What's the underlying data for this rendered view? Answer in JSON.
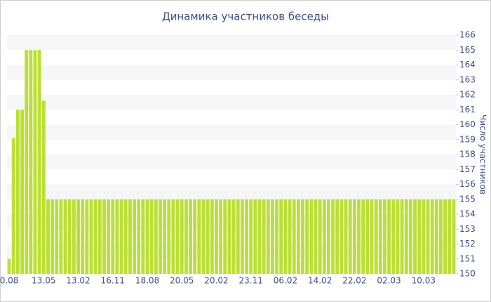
{
  "chart_data": {
    "type": "bar",
    "title": "Динамика участников беседы",
    "y_axis_label": "Число участников",
    "color": "#bcdf37",
    "categories": [
      "0.08",
      null,
      null,
      null,
      null,
      null,
      null,
      null,
      "13.05",
      null,
      null,
      null,
      null,
      null,
      null,
      null,
      "13.02",
      null,
      null,
      null,
      null,
      null,
      null,
      null,
      "16.11",
      null,
      null,
      null,
      null,
      null,
      null,
      null,
      "18.08",
      null,
      null,
      null,
      null,
      null,
      null,
      null,
      "20.05",
      null,
      null,
      null,
      null,
      null,
      null,
      null,
      "20.02",
      null,
      null,
      null,
      null,
      null,
      null,
      null,
      "23.11",
      null,
      null,
      null,
      null,
      null,
      null,
      null,
      "06.02",
      null,
      null,
      null,
      null,
      null,
      null,
      null,
      "14.02",
      null,
      null,
      null,
      null,
      null,
      null,
      null,
      "22.02",
      null,
      null,
      null,
      null,
      null,
      null,
      null,
      "02.03",
      null,
      null,
      null,
      null,
      null,
      null,
      null,
      "10.03",
      null,
      null,
      null,
      null,
      null,
      null,
      null
    ],
    "values": [
      151,
      159.1,
      161,
      161,
      165,
      165,
      165,
      165,
      161.6,
      155,
      155,
      155,
      155,
      155,
      155,
      155,
      155,
      155,
      155,
      155,
      155,
      155,
      155,
      155,
      155,
      155,
      155,
      155,
      155,
      155,
      155,
      155,
      155,
      155,
      155,
      155,
      155,
      155,
      155,
      155,
      155,
      155,
      155,
      155,
      155,
      155,
      155,
      155,
      155,
      155,
      155,
      155,
      155,
      155,
      155,
      155,
      155,
      155,
      155,
      155,
      155,
      155,
      155,
      155,
      155,
      155,
      155,
      155,
      155,
      155,
      155,
      155,
      155,
      155,
      155,
      155,
      155,
      155,
      155,
      155,
      155,
      155,
      155,
      155,
      155,
      155,
      155,
      155,
      155,
      155,
      155,
      155,
      155,
      155,
      155,
      155,
      155,
      155,
      155,
      155,
      155,
      155,
      155,
      155
    ],
    "ylim": [
      150,
      166
    ],
    "yticks": [
      150,
      151,
      152,
      153,
      154,
      155,
      156,
      157,
      158,
      159,
      160,
      161,
      162,
      163,
      164,
      165,
      166
    ],
    "grid": true
  }
}
